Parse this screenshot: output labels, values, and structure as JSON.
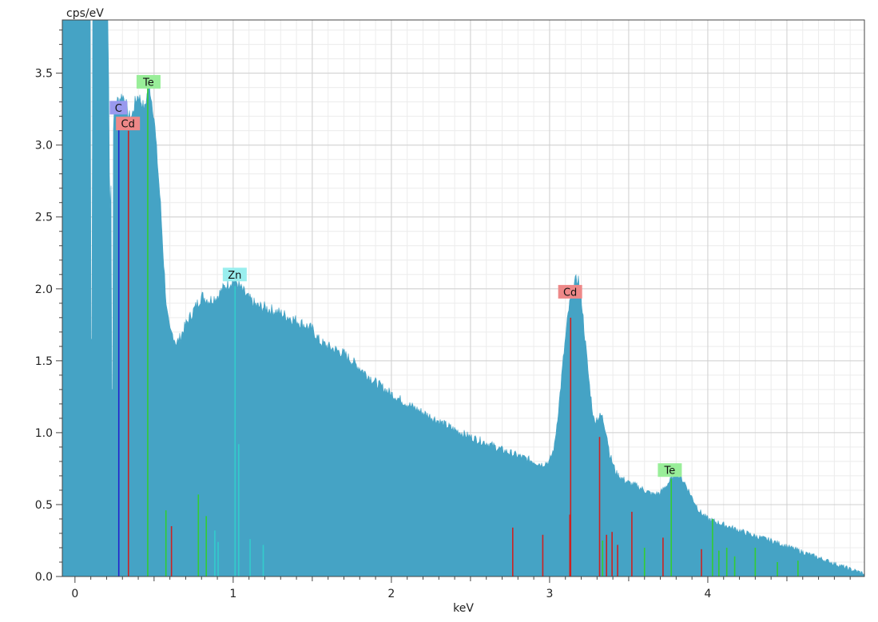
{
  "chart_data": {
    "type": "area",
    "title": "",
    "xlabel": "keV",
    "ylabel": "cps/eV",
    "xlim": [
      -0.08,
      4.99
    ],
    "ylim": [
      0,
      3.87
    ],
    "x_ticks": [
      0,
      1,
      2,
      3,
      4
    ],
    "x_tick_labels": [
      "0",
      "1",
      "2",
      "3",
      "4"
    ],
    "y_ticks": [
      0.0,
      0.5,
      1.0,
      1.5,
      2.0,
      2.5,
      3.0,
      3.5
    ],
    "y_tick_labels": [
      "0.0",
      "0.5",
      "1.0",
      "1.5",
      "2.0",
      "2.5",
      "3.0",
      "3.5"
    ],
    "grid": true,
    "spectrum_color": "#45a3c5",
    "spectrum": {
      "x": [
        -0.08,
        0.0,
        0.05,
        0.09,
        0.1,
        0.11,
        0.12,
        0.2,
        0.21,
        0.22,
        0.23,
        0.24,
        0.25,
        0.26,
        0.28,
        0.3,
        0.32,
        0.34,
        0.36,
        0.38,
        0.4,
        0.42,
        0.44,
        0.46,
        0.47,
        0.5,
        0.52,
        0.54,
        0.56,
        0.58,
        0.6,
        0.62,
        0.64,
        0.66,
        0.68,
        0.7,
        0.75,
        0.8,
        0.85,
        0.9,
        0.95,
        1.0,
        1.02,
        1.05,
        1.1,
        1.15,
        1.2,
        1.3,
        1.4,
        1.5,
        1.55,
        1.6,
        1.7,
        1.8,
        1.9,
        2.0,
        2.1,
        2.2,
        2.3,
        2.4,
        2.5,
        2.6,
        2.7,
        2.8,
        2.9,
        2.95,
        3.0,
        3.03,
        3.06,
        3.09,
        3.12,
        3.15,
        3.18,
        3.2,
        3.22,
        3.25,
        3.28,
        3.3,
        3.33,
        3.36,
        3.38,
        3.42,
        3.46,
        3.5,
        3.55,
        3.6,
        3.65,
        3.7,
        3.75,
        3.8,
        3.85,
        3.9,
        3.95,
        4.0,
        4.1,
        4.2,
        4.3,
        4.4,
        4.5,
        4.6,
        4.7,
        4.8,
        4.9,
        4.99
      ],
      "y": [
        3.87,
        3.87,
        3.87,
        3.87,
        3.87,
        3.87,
        3.87,
        3.87,
        3.87,
        2.5,
        2.8,
        3.1,
        3.25,
        3.3,
        3.32,
        3.35,
        3.3,
        3.2,
        3.2,
        3.3,
        3.35,
        3.3,
        3.25,
        3.38,
        3.42,
        3.2,
        2.9,
        2.6,
        2.2,
        1.85,
        1.7,
        1.68,
        1.62,
        1.65,
        1.7,
        1.75,
        1.85,
        1.95,
        1.92,
        1.95,
        2.02,
        2.06,
        2.05,
        2.0,
        1.93,
        1.88,
        1.87,
        1.83,
        1.78,
        1.72,
        1.63,
        1.6,
        1.55,
        1.45,
        1.35,
        1.27,
        1.2,
        1.14,
        1.08,
        1.02,
        0.97,
        0.93,
        0.88,
        0.84,
        0.8,
        0.78,
        0.8,
        0.9,
        1.2,
        1.55,
        1.85,
        2.02,
        2.08,
        1.95,
        1.7,
        1.35,
        1.08,
        1.1,
        1.12,
        1.0,
        0.85,
        0.72,
        0.68,
        0.65,
        0.63,
        0.6,
        0.57,
        0.58,
        0.65,
        0.72,
        0.66,
        0.55,
        0.45,
        0.4,
        0.36,
        0.32,
        0.28,
        0.25,
        0.21,
        0.17,
        0.13,
        0.09,
        0.05,
        0.02
      ]
    },
    "dips": [
      {
        "x": 0.105,
        "y": 1.65
      },
      {
        "x": 0.235,
        "y": 1.3
      }
    ],
    "element_lines": [
      {
        "element": "C",
        "color": "#2222cc",
        "lines": [
          {
            "x": 0.277,
            "y": 3.15
          }
        ]
      },
      {
        "element": "Cd",
        "color": "#cc2222",
        "lines": [
          {
            "x": 0.338,
            "y": 3.1
          },
          {
            "x": 0.61,
            "y": 0.35
          },
          {
            "x": 2.767,
            "y": 0.34
          },
          {
            "x": 2.957,
            "y": 0.29
          },
          {
            "x": 3.133,
            "y": 1.8
          },
          {
            "x": 3.128,
            "y": 0.43
          },
          {
            "x": 3.316,
            "y": 0.97
          },
          {
            "x": 3.36,
            "y": 0.29
          },
          {
            "x": 3.395,
            "y": 0.31
          },
          {
            "x": 3.43,
            "y": 0.22
          },
          {
            "x": 3.52,
            "y": 0.45
          },
          {
            "x": 3.717,
            "y": 0.27
          },
          {
            "x": 3.96,
            "y": 0.19
          }
        ]
      },
      {
        "element": "Te",
        "color": "#33cc33",
        "lines": [
          {
            "x": 0.46,
            "y": 3.4
          },
          {
            "x": 0.575,
            "y": 0.46
          },
          {
            "x": 0.78,
            "y": 0.57
          },
          {
            "x": 0.83,
            "y": 0.42
          },
          {
            "x": 3.335,
            "y": 0.25
          },
          {
            "x": 3.6,
            "y": 0.2
          },
          {
            "x": 3.769,
            "y": 0.68
          },
          {
            "x": 4.03,
            "y": 0.4
          },
          {
            "x": 4.07,
            "y": 0.18
          },
          {
            "x": 4.12,
            "y": 0.2
          },
          {
            "x": 4.17,
            "y": 0.14
          },
          {
            "x": 4.3,
            "y": 0.2
          },
          {
            "x": 4.44,
            "y": 0.1
          },
          {
            "x": 4.57,
            "y": 0.11
          }
        ]
      },
      {
        "element": "Zn",
        "color": "#33cccc",
        "lines": [
          {
            "x": 0.884,
            "y": 0.32
          },
          {
            "x": 0.905,
            "y": 0.24
          },
          {
            "x": 1.012,
            "y": 2.02
          },
          {
            "x": 1.035,
            "y": 0.92
          },
          {
            "x": 1.107,
            "y": 0.26
          },
          {
            "x": 1.19,
            "y": 0.22
          }
        ]
      }
    ],
    "peak_labels": [
      {
        "text": "C",
        "x": 0.275,
        "y": 3.26,
        "bg": "#9999ee"
      },
      {
        "text": "Cd",
        "x": 0.335,
        "y": 3.15,
        "bg": "#ee8888"
      },
      {
        "text": "Te",
        "x": 0.465,
        "y": 3.44,
        "bg": "#99ee99"
      },
      {
        "text": "Zn",
        "x": 1.01,
        "y": 2.1,
        "bg": "#99eeee"
      },
      {
        "text": "Cd",
        "x": 3.13,
        "y": 1.98,
        "bg": "#ee8888"
      },
      {
        "text": "Te",
        "x": 3.76,
        "y": 0.74,
        "bg": "#99ee99"
      }
    ]
  }
}
